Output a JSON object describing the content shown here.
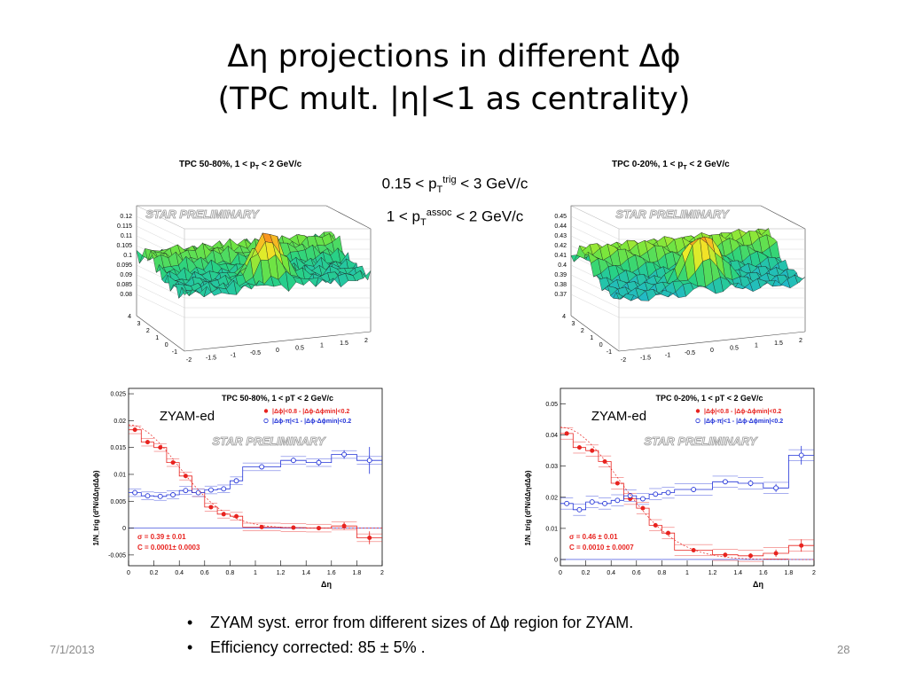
{
  "slide": {
    "title_line1": "Δη projections in different Δϕ",
    "title_line2": "(TPC mult. |η|<1 as centrality)",
    "kin_line1_a": "0.15 < p",
    "kin_line1_sub": "T",
    "kin_line1_sup": "trig",
    "kin_line1_b": " < 3 GeV/c",
    "kin_line2_a": "1 < p",
    "kin_line2_sub": "T",
    "kin_line2_sup": "assoc",
    "kin_line2_b": " < 2 GeV/c",
    "bullets": [
      "ZYAM syst. error from different sizes of Δϕ region for ZYAM.",
      "Efficiency corrected: 85 ± 5% ."
    ],
    "date": "7/1/2013",
    "page_number": "28"
  },
  "surfaces": [
    {
      "title": "TPC 50-80%, 1 < p",
      "title_sub": "T",
      "title_tail": " < 2 GeV/c",
      "watermark": "STAR PRELIMINARY",
      "z_ticks": [
        "0.12",
        "0.115",
        "0.11",
        "0.105",
        "0.1",
        "0.095",
        "0.09",
        "0.085",
        "0.08"
      ],
      "y_ticks": [
        "4",
        "3",
        "2",
        "1",
        "0",
        "-1"
      ],
      "x_ticks": [
        "-2",
        "-1.5",
        "-1",
        "-0.5",
        "0",
        "0.5",
        "1",
        "1.5",
        "2"
      ]
    },
    {
      "title": "TPC 0-20%, 1 < p",
      "title_sub": "T",
      "title_tail": " < 2 GeV/c",
      "watermark": "STAR PRELIMINARY",
      "z_ticks": [
        "0.45",
        "0.44",
        "0.43",
        "0.42",
        "0.41",
        "0.4",
        "0.39",
        "0.38",
        "0.37"
      ],
      "y_ticks": [
        "4",
        "3",
        "2",
        "1",
        "0",
        "-1"
      ],
      "x_ticks": [
        "-2",
        "-1.5",
        "-1",
        "-0.5",
        "0",
        "0.5",
        "1",
        "1.5",
        "2"
      ]
    }
  ],
  "chart_data": [
    {
      "type": "scatter",
      "title": "TPC 50-80%, 1 < pT < 2 GeV/c",
      "annotation": "ZYAM-ed",
      "watermark": "STAR PRELIMINARY",
      "xlabel": "Δη",
      "ylabel": "1/N_trig (d²N/dΔηdΔϕ)",
      "xlim": [
        0,
        2
      ],
      "ylim": [
        -0.007,
        0.026
      ],
      "x_ticks": [
        "0",
        "0.2",
        "0.4",
        "0.6",
        "0.8",
        "1",
        "1.2",
        "1.4",
        "1.6",
        "1.8",
        "2"
      ],
      "y_ticks": [
        {
          "v": 0.025,
          "label": "0.025"
        },
        {
          "v": 0.02,
          "label": "0.02"
        },
        {
          "v": 0.015,
          "label": "0.015"
        },
        {
          "v": 0.01,
          "label": "0.01"
        },
        {
          "v": 0.005,
          "label": "0.005"
        },
        {
          "v": 0,
          "label": "0"
        },
        {
          "v": -0.005,
          "label": "-0.005"
        }
      ],
      "x": [
        0.05,
        0.15,
        0.25,
        0.35,
        0.45,
        0.55,
        0.65,
        0.75,
        0.85,
        1.05,
        1.3,
        1.5,
        1.7,
        1.9
      ],
      "bin_edges": [
        0,
        0.1,
        0.2,
        0.3,
        0.4,
        0.5,
        0.6,
        0.7,
        0.8,
        0.9,
        1.2,
        1.4,
        1.6,
        1.8,
        2.0
      ],
      "series": [
        {
          "name": "|Δϕ|<0.8 - |Δϕ-Δϕmin|<0.2",
          "color": "#e8231f",
          "marker": "filled",
          "values": [
            0.0183,
            0.016,
            0.015,
            0.0122,
            0.0097,
            0.0066,
            0.0039,
            0.0026,
            0.0022,
            0.0002,
            0.0001,
            0.0,
            0.0004,
            -0.0018
          ],
          "errors": [
            0.0004,
            0.0004,
            0.0004,
            0.0004,
            0.0004,
            0.0004,
            0.0004,
            0.0004,
            0.0004,
            0.0004,
            0.0004,
            0.0004,
            0.0007,
            0.0012
          ]
        },
        {
          "name": "|Δϕ-π|<1 - |Δϕ-Δϕmin|<0.2",
          "color": "#2233d8",
          "marker": "open",
          "values": [
            0.0066,
            0.006,
            0.0059,
            0.0062,
            0.007,
            0.0066,
            0.0071,
            0.0073,
            0.0088,
            0.0114,
            0.0126,
            0.0122,
            0.0137,
            0.0126
          ],
          "errors": [
            0.0004,
            0.0004,
            0.0004,
            0.0004,
            0.0004,
            0.0004,
            0.0004,
            0.0004,
            0.0004,
            0.0005,
            0.0005,
            0.0006,
            0.0008,
            0.0025
          ]
        }
      ],
      "fit_text": [
        "σ = 0.39 ± 0.01",
        "C = 0.0001± 0.0003"
      ]
    },
    {
      "type": "scatter",
      "title": "TPC 0-20%, 1 < pT < 2 GeV/c",
      "annotation": "ZYAM-ed",
      "watermark": "STAR PRELIMINARY",
      "xlabel": "Δη",
      "ylabel": "1/N_trig (d²N/dΔηdΔϕ)",
      "xlim": [
        0,
        2
      ],
      "ylim": [
        -0.002,
        0.055
      ],
      "x_ticks": [
        "0",
        "0.2",
        "0.4",
        "0.6",
        "0.8",
        "1",
        "1.2",
        "1.4",
        "1.6",
        "1.8",
        "2"
      ],
      "y_ticks": [
        {
          "v": 0.05,
          "label": "0.05"
        },
        {
          "v": 0.04,
          "label": "0.04"
        },
        {
          "v": 0.03,
          "label": "0.03"
        },
        {
          "v": 0.02,
          "label": "0.02"
        },
        {
          "v": 0.01,
          "label": "0.01"
        },
        {
          "v": 0,
          "label": "0"
        }
      ],
      "x": [
        0.05,
        0.15,
        0.25,
        0.35,
        0.45,
        0.55,
        0.65,
        0.75,
        0.85,
        1.05,
        1.3,
        1.5,
        1.7,
        1.9
      ],
      "bin_edges": [
        0,
        0.1,
        0.2,
        0.3,
        0.4,
        0.5,
        0.6,
        0.7,
        0.8,
        0.9,
        1.2,
        1.4,
        1.6,
        1.8,
        2.0
      ],
      "series": [
        {
          "name": "|Δϕ|<0.8 - |Δϕ-Δϕmin|<0.2",
          "color": "#e8231f",
          "marker": "filled",
          "values": [
            0.0405,
            0.036,
            0.035,
            0.0315,
            0.0245,
            0.0195,
            0.0165,
            0.011,
            0.0085,
            0.003,
            0.0015,
            0.0012,
            0.002,
            0.0045
          ],
          "errors": [
            0.0007,
            0.0007,
            0.0007,
            0.0007,
            0.0007,
            0.0007,
            0.0007,
            0.0007,
            0.0007,
            0.0007,
            0.0007,
            0.0008,
            0.0012,
            0.002
          ]
        },
        {
          "name": "|Δϕ-π|<1 - |Δϕ-Δϕmin|<0.2",
          "color": "#2233d8",
          "marker": "open",
          "values": [
            0.018,
            0.016,
            0.0185,
            0.018,
            0.019,
            0.0205,
            0.0195,
            0.021,
            0.0215,
            0.0225,
            0.025,
            0.0245,
            0.023,
            0.0335
          ],
          "errors": [
            0.0007,
            0.0007,
            0.0007,
            0.0007,
            0.0007,
            0.0007,
            0.0007,
            0.0007,
            0.0007,
            0.0008,
            0.0008,
            0.001,
            0.0013,
            0.003
          ]
        }
      ],
      "fit_text": [
        "σ = 0.46 ± 0.01",
        "C = 0.0010 ± 0.0007"
      ]
    }
  ]
}
